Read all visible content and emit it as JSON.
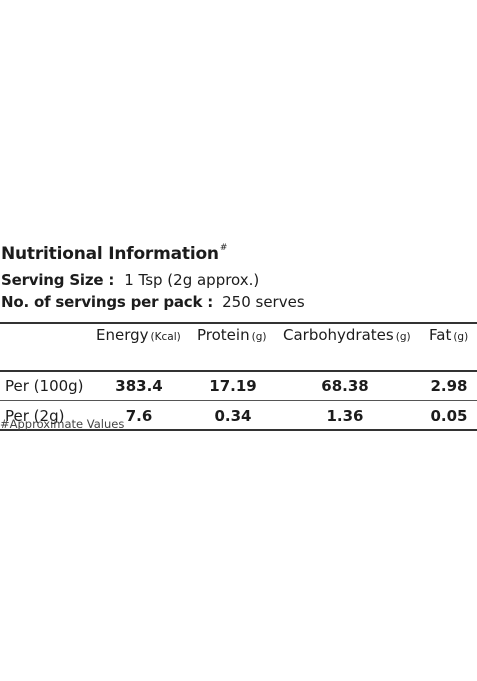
{
  "nutrition": {
    "title": "Nutritional Information",
    "title_mark": "#",
    "serving_size_label": "Serving Size :",
    "serving_size_value": "1 Tsp (2g approx.)",
    "servings_label": "No. of servings per pack :",
    "servings_value": "250 serves",
    "columns": [
      {
        "name": "Energy",
        "unit": "(Kcal)"
      },
      {
        "name": "Protein",
        "unit": "(g)"
      },
      {
        "name": "Carbohydrates",
        "unit": "(g)"
      },
      {
        "name": "Fat",
        "unit": "(g)"
      }
    ],
    "rows": [
      {
        "label": "Per (100g)",
        "values": [
          "383.4",
          "17.19",
          "68.38",
          "2.98"
        ]
      },
      {
        "label": "Per (2g)",
        "values": [
          "7.6",
          "0.34",
          "1.36",
          "0.05"
        ]
      }
    ],
    "footnote": "#Approximate Values"
  }
}
